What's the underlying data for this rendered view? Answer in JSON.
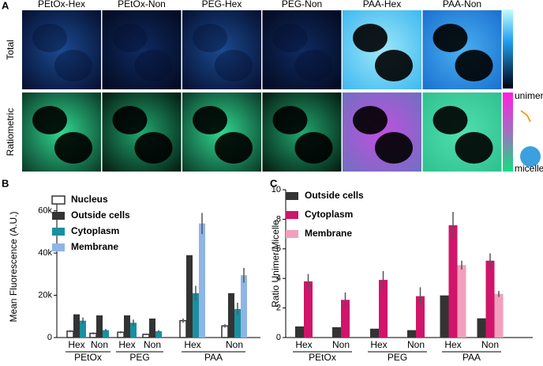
{
  "panel_labels": [
    "A",
    "B",
    "C"
  ],
  "panel_a": {
    "columns": [
      "PEtOx-Hex",
      "PEtOx-Non",
      "PEG-Hex",
      "PEG-Non",
      "PAA-Hex",
      "PAA-Non"
    ],
    "rows": [
      "Total",
      "Ratiometric"
    ],
    "colorbar_labels": [
      "unimer",
      "micelle"
    ]
  },
  "chart_data": [
    {
      "type": "bar",
      "y_label": "Mean Fluorescence (A.U.)",
      "categories": [
        "Hex",
        "Non",
        "Hex",
        "Non",
        "Hex",
        "Non"
      ],
      "groups": [
        "PEtOx",
        "PEG",
        "PAA"
      ],
      "series": [
        {
          "name": "Nucleus",
          "color": "#ffffff",
          "values": [
            3000,
            2000,
            2500,
            1500,
            8000,
            5500
          ],
          "errors": [
            500,
            500,
            500,
            400,
            1000,
            800
          ]
        },
        {
          "name": "Outside cells",
          "color": "#333333",
          "values": [
            11000,
            10500,
            10500,
            9000,
            39000,
            21000
          ],
          "errors": [
            null,
            null,
            null,
            null,
            null,
            null
          ]
        },
        {
          "name": "Cytoplasm",
          "color": "#1a8fa0",
          "values": [
            8000,
            3500,
            7000,
            3000,
            21000,
            13500
          ],
          "errors": [
            1500,
            600,
            1500,
            500,
            3500,
            3000
          ]
        },
        {
          "name": "Membrane",
          "color": "#8fb4e6",
          "values": [
            null,
            null,
            null,
            null,
            54000,
            29500
          ],
          "errors": [
            null,
            null,
            null,
            null,
            5000,
            3500
          ]
        }
      ],
      "ylim": [
        0,
        67000
      ],
      "yticks": [
        0,
        {
          "value": 20000,
          "label": "20k"
        },
        {
          "value": 40000,
          "label": "40k"
        },
        {
          "value": 60000,
          "label": "60k"
        }
      ]
    },
    {
      "type": "bar",
      "y_label": "Ratio Unimer/Micelle",
      "categories": [
        "Hex",
        "Non",
        "Hex",
        "Non",
        "Hex",
        "Non"
      ],
      "groups": [
        "PEtOx",
        "PEG",
        "PAA"
      ],
      "series": [
        {
          "name": "Outside cells",
          "color": "#333333",
          "values": [
            0.75,
            0.7,
            0.6,
            0.5,
            2.85,
            1.3
          ],
          "errors": [
            null,
            null,
            null,
            null,
            null,
            null
          ]
        },
        {
          "name": "Cytoplasm",
          "color": "#d0156a",
          "values": [
            3.8,
            2.55,
            3.9,
            2.8,
            7.6,
            5.2
          ],
          "errors": [
            0.5,
            0.5,
            0.6,
            0.6,
            0.9,
            0.5
          ]
        },
        {
          "name": "Membrane",
          "color": "#f0a0bc",
          "values": [
            null,
            null,
            null,
            null,
            4.9,
            2.95
          ],
          "errors": [
            null,
            null,
            null,
            null,
            0.3,
            0.2
          ]
        }
      ],
      "ylim": [
        0,
        10
      ],
      "yticks": [
        0,
        2,
        4,
        6,
        8,
        10
      ]
    }
  ]
}
